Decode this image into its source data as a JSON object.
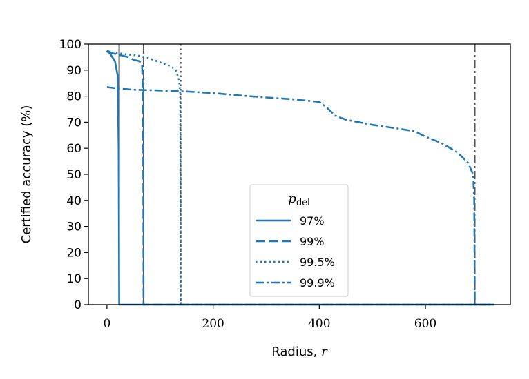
{
  "chart_data": {
    "type": "line",
    "xlabel": "Radius, ",
    "xlabel_var": "r",
    "ylabel": "Certified accuracy (%)",
    "xlim": [
      -35,
      760
    ],
    "ylim": [
      0,
      100
    ],
    "xticks": [
      0,
      200,
      400,
      600
    ],
    "yticks": [
      0,
      10,
      20,
      30,
      40,
      50,
      60,
      70,
      80,
      90,
      100
    ],
    "grid": false,
    "legend": {
      "title": "p",
      "title_sub": "del",
      "placement": "lower-center"
    },
    "line_color": "#1f77b4",
    "vline_color": "#555555",
    "vlines": [
      {
        "x": 23,
        "style": "solid"
      },
      {
        "x": 69,
        "style": "dashed"
      },
      {
        "x": 139,
        "style": "dotted"
      },
      {
        "x": 693,
        "style": "dashdot"
      }
    ],
    "series": [
      {
        "name": "97%",
        "style": "solid",
        "points": [
          [
            0,
            97.5
          ],
          [
            5,
            96.5
          ],
          [
            10,
            95.0
          ],
          [
            15,
            93.5
          ],
          [
            20,
            88.0
          ],
          [
            22,
            60.0
          ],
          [
            23,
            0.0
          ],
          [
            730,
            0.0
          ]
        ]
      },
      {
        "name": "99%",
        "style": "dashed",
        "points": [
          [
            0,
            97.5
          ],
          [
            10,
            96.5
          ],
          [
            20,
            96.0
          ],
          [
            30,
            95.5
          ],
          [
            40,
            95.0
          ],
          [
            50,
            94.0
          ],
          [
            60,
            93.5
          ],
          [
            66,
            92.5
          ],
          [
            68,
            80.0
          ],
          [
            69,
            0.0
          ],
          [
            730,
            0.0
          ]
        ]
      },
      {
        "name": "99.5%",
        "style": "dotted",
        "points": [
          [
            0,
            97.0
          ],
          [
            20,
            96.5
          ],
          [
            40,
            96.0
          ],
          [
            60,
            95.5
          ],
          [
            80,
            94.5
          ],
          [
            100,
            93.0
          ],
          [
            120,
            91.5
          ],
          [
            130,
            90.0
          ],
          [
            136,
            86.0
          ],
          [
            138,
            80.0
          ],
          [
            139,
            0.0
          ],
          [
            730,
            0.0
          ]
        ]
      },
      {
        "name": "99.9%",
        "style": "dashdot",
        "points": [
          [
            0,
            83.5
          ],
          [
            20,
            83.0
          ],
          [
            50,
            82.5
          ],
          [
            100,
            82.2
          ],
          [
            150,
            81.8
          ],
          [
            200,
            81.2
          ],
          [
            250,
            80.3
          ],
          [
            300,
            79.5
          ],
          [
            350,
            78.8
          ],
          [
            400,
            77.8
          ],
          [
            415,
            75.5
          ],
          [
            430,
            72.5
          ],
          [
            450,
            71.0
          ],
          [
            500,
            69.0
          ],
          [
            550,
            67.5
          ],
          [
            580,
            66.5
          ],
          [
            600,
            64.5
          ],
          [
            630,
            62.0
          ],
          [
            660,
            58.5
          ],
          [
            680,
            54.5
          ],
          [
            690,
            50.0
          ],
          [
            692,
            40.0
          ],
          [
            693,
            0.0
          ],
          [
            730,
            0.0
          ]
        ]
      }
    ]
  }
}
